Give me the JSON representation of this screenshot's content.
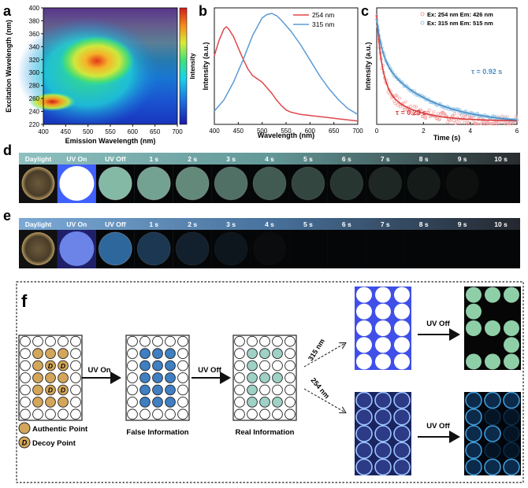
{
  "panel_labels": {
    "a": "a",
    "b": "b",
    "c": "c",
    "d": "d",
    "e": "e",
    "f": "f"
  },
  "chart_data": [
    {
      "type": "heatmap",
      "title": "",
      "xlabel": "Emission Wavelength (nm)",
      "ylabel": "Excitation Wavelength (nm)",
      "colorbar_label": "Intensity",
      "xlim": [
        400,
        700
      ],
      "ylim": [
        220,
        400
      ],
      "xticks": [
        "400",
        "450",
        "500",
        "550",
        "600",
        "650",
        "700"
      ],
      "yticks": [
        "220",
        "240",
        "260",
        "280",
        "300",
        "320",
        "340",
        "360",
        "380",
        "400"
      ],
      "hotspots": [
        {
          "x": 420,
          "y": 255,
          "level": 1.0
        },
        {
          "x": 520,
          "y": 318,
          "level": 0.85
        }
      ]
    },
    {
      "type": "line",
      "xlabel": "Wavelength (nm)",
      "ylabel": "Intensity (a.u.)",
      "xlim": [
        400,
        700
      ],
      "ylim": [
        0,
        1.05
      ],
      "xticks": [
        "400",
        "450",
        "500",
        "550",
        "600",
        "650",
        "700"
      ],
      "legend": "top-right",
      "series": [
        {
          "name": "254 nm",
          "color": "#e0474c",
          "x": [
            400,
            410,
            420,
            425,
            430,
            440,
            450,
            460,
            470,
            480,
            490,
            500,
            510,
            520,
            530,
            540,
            550,
            560,
            580,
            600,
            620,
            640,
            660,
            680,
            700
          ],
          "y": [
            0.62,
            0.76,
            0.86,
            0.88,
            0.86,
            0.79,
            0.69,
            0.59,
            0.5,
            0.44,
            0.41,
            0.38,
            0.33,
            0.28,
            0.22,
            0.17,
            0.13,
            0.11,
            0.09,
            0.08,
            0.07,
            0.06,
            0.05,
            0.04,
            0.03
          ]
        },
        {
          "name": "315 nm",
          "color": "#5b9bd5",
          "x": [
            400,
            420,
            440,
            460,
            480,
            500,
            510,
            520,
            530,
            540,
            560,
            580,
            600,
            620,
            640,
            660,
            680,
            700
          ],
          "y": [
            0.12,
            0.22,
            0.38,
            0.58,
            0.8,
            0.96,
            0.99,
            1.0,
            0.98,
            0.94,
            0.84,
            0.72,
            0.58,
            0.44,
            0.32,
            0.22,
            0.14,
            0.09
          ]
        }
      ]
    },
    {
      "type": "scatter",
      "xlabel": "Time (s)",
      "ylabel": "Intensity (a.u.)",
      "xlim": [
        0,
        6
      ],
      "ylim": [
        0,
        1.05
      ],
      "xticks": [
        "0",
        "2",
        "4",
        "6"
      ],
      "legend": "top-right",
      "series": [
        {
          "name": "Ex: 254 nm Em: 426 nm",
          "color": "#f2a0a0",
          "fit_color": "#d93b3b",
          "tau_label": "τ = 0.23 s",
          "tau_value": 0.23,
          "amplitude": 0.95,
          "floor": 0.03
        },
        {
          "name": "Ex: 315 nm Em: 515 nm",
          "color": "#9cc8e8",
          "fit_color": "#4b8ec5",
          "tau_label": "τ = 0.92 s",
          "tau_value": 0.92,
          "amplitude": 0.9,
          "floor": 0.0
        }
      ]
    }
  ],
  "strip_d": {
    "labels": [
      "Daylight",
      "UV On",
      "UV Off",
      "1 s",
      "2 s",
      "3 s",
      "4 s",
      "5 s",
      "6 s",
      "7 s",
      "8 s",
      "9 s",
      "10 s"
    ],
    "tint": "#9ad8c2",
    "brightness": [
      0.25,
      1.0,
      0.85,
      0.74,
      0.62,
      0.5,
      0.4,
      0.3,
      0.22,
      0.15,
      0.09,
      0.04,
      0.0
    ]
  },
  "strip_e": {
    "labels": [
      "Daylight",
      "UV On",
      "UV Off",
      "1 s",
      "2 s",
      "3 s",
      "4 s",
      "5 s",
      "6 s",
      "7 s",
      "8 s",
      "9 s",
      "10 s"
    ],
    "tint": "#3f8fdc",
    "brightness": [
      0.25,
      0.9,
      0.7,
      0.35,
      0.18,
      0.1,
      0.03,
      0.0,
      0.0,
      0.0,
      0.0,
      0.0,
      0.0
    ]
  },
  "panel_f": {
    "legend_authentic": "Authentic Point",
    "legend_decoy": "Decoy Point",
    "decoy_letter": "D",
    "arrow_uv_on": "UV On",
    "arrow_uv_off_1": "UV Off",
    "caption_false": "False Information",
    "caption_real": "Real Information",
    "label_315": "315 nm",
    "label_254": "254 nm",
    "arrow_uv_off_top": "UV Off",
    "arrow_uv_off_bottom": "UV Off"
  },
  "colors": {
    "authentic": "#d4a65a",
    "false_blue": "#3f7fc2",
    "real_teal": "#9fd1c6",
    "frame": "#222222"
  }
}
